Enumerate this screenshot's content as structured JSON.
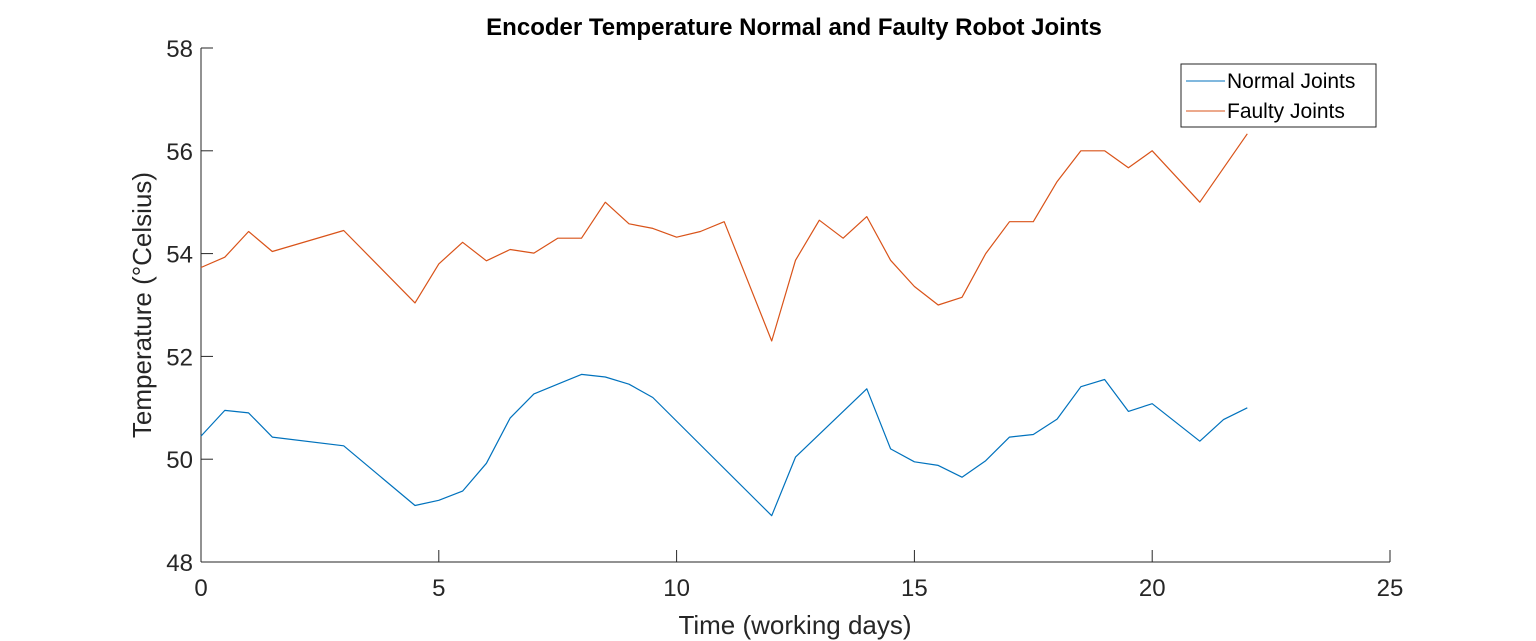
{
  "chart_data": {
    "type": "line",
    "title": "Encoder Temperature Normal and Faulty Robot Joints",
    "xlabel": "Time (working days)",
    "ylabel": "Temperature (°Celsius)",
    "xlim": [
      0,
      25
    ],
    "ylim": [
      48,
      58
    ],
    "xticks": [
      0,
      5,
      10,
      15,
      20,
      25
    ],
    "yticks": [
      48,
      50,
      52,
      54,
      56,
      58
    ],
    "grid": false,
    "legend_position": "top-right",
    "series": [
      {
        "name": "Normal Joints",
        "color": "#0072BD",
        "x": [
          0,
          0.5,
          1,
          1.5,
          3,
          4.5,
          5,
          5.5,
          6,
          6.5,
          7,
          8,
          8.5,
          9,
          9.5,
          12,
          12.5,
          14,
          14.5,
          15,
          15.5,
          16,
          16.5,
          17,
          17.5,
          18,
          18.5,
          19,
          19.5,
          20,
          21,
          21.5,
          22
        ],
        "y": [
          50.45,
          50.95,
          50.9,
          50.43,
          50.26,
          49.1,
          49.2,
          49.38,
          49.92,
          50.8,
          51.27,
          51.65,
          51.6,
          51.46,
          51.2,
          48.9,
          50.04,
          51.37,
          50.2,
          49.95,
          49.88,
          49.65,
          49.97,
          50.43,
          50.48,
          50.78,
          51.41,
          51.55,
          50.93,
          51.08,
          50.35,
          50.77,
          51.0
        ]
      },
      {
        "name": "Faulty Joints",
        "color": "#D95319",
        "x": [
          0,
          0.5,
          1,
          1.5,
          3,
          4.5,
          5,
          5.5,
          6,
          6.5,
          7,
          7.5,
          8,
          8.5,
          9,
          9.5,
          10,
          10.5,
          11,
          12,
          12.5,
          13,
          13.5,
          14,
          14.5,
          15,
          15.5,
          16,
          16.5,
          17,
          17.5,
          18,
          18.5,
          19,
          19.5,
          20,
          21,
          22
        ],
        "y": [
          53.73,
          53.93,
          54.43,
          54.04,
          54.45,
          53.04,
          53.8,
          54.22,
          53.86,
          54.08,
          54.01,
          54.3,
          54.3,
          55.0,
          54.58,
          54.49,
          54.32,
          54.43,
          54.62,
          52.3,
          53.87,
          54.65,
          54.3,
          54.72,
          53.87,
          53.36,
          53.0,
          53.15,
          54.0,
          54.62,
          54.62,
          55.4,
          56.0,
          56.0,
          55.67,
          56.0,
          55.0,
          56.33
        ]
      }
    ]
  }
}
